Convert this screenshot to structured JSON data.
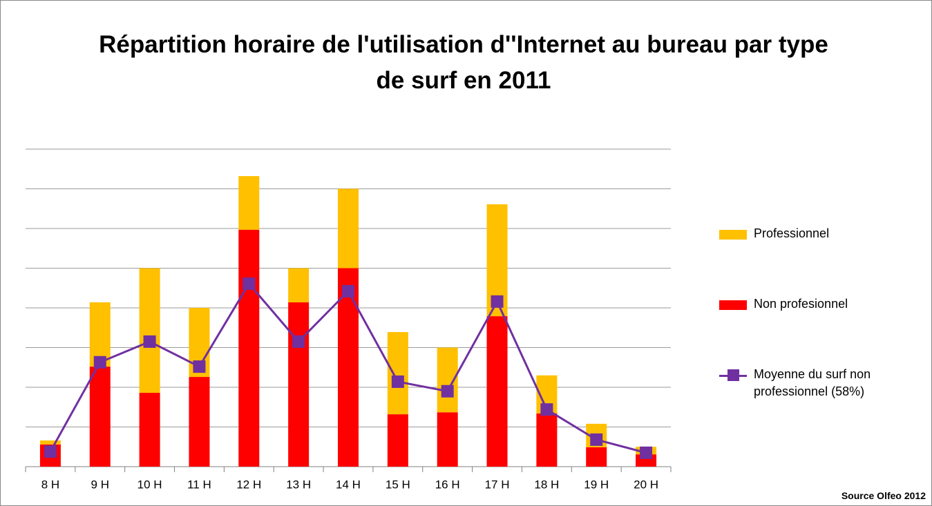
{
  "chart_data": {
    "type": "bar",
    "stacked": true,
    "title": "Répartition horaire de l'utilisation d''Internet au bureau par type de surf en 2011",
    "source": "Source Olfeo 2012",
    "categories": [
      "8 H",
      "9 H",
      "10 H",
      "11 H",
      "12 H",
      "13 H",
      "14 H",
      "15 H",
      "16 H",
      "17 H",
      "18 H",
      "19 H",
      "20 H"
    ],
    "ylim": [
      0,
      8
    ],
    "yticks": [
      0,
      1,
      2,
      3,
      4,
      5,
      6,
      7,
      8
    ],
    "grid": true,
    "series": [
      {
        "name": "Non profesionnel",
        "type": "bar",
        "color": "#ff0000",
        "values": [
          0.56,
          2.52,
          1.86,
          2.26,
          5.97,
          4.14,
          5.0,
          1.32,
          1.37,
          3.79,
          1.34,
          0.49,
          0.31
        ]
      },
      {
        "name": "Professionnel",
        "type": "bar",
        "color": "#ffc000",
        "values": [
          0.1,
          1.62,
          3.14,
          1.74,
          1.35,
          0.86,
          2.0,
          2.07,
          1.63,
          2.82,
          0.96,
          0.59,
          0.19
        ]
      },
      {
        "name": "Moyenne du surf non professionnel (58%)",
        "type": "line",
        "color": "#7030a0",
        "values": [
          0.38,
          2.63,
          3.15,
          2.52,
          4.61,
          3.15,
          4.42,
          2.14,
          1.9,
          4.16,
          1.44,
          0.68,
          0.35
        ]
      }
    ]
  }
}
